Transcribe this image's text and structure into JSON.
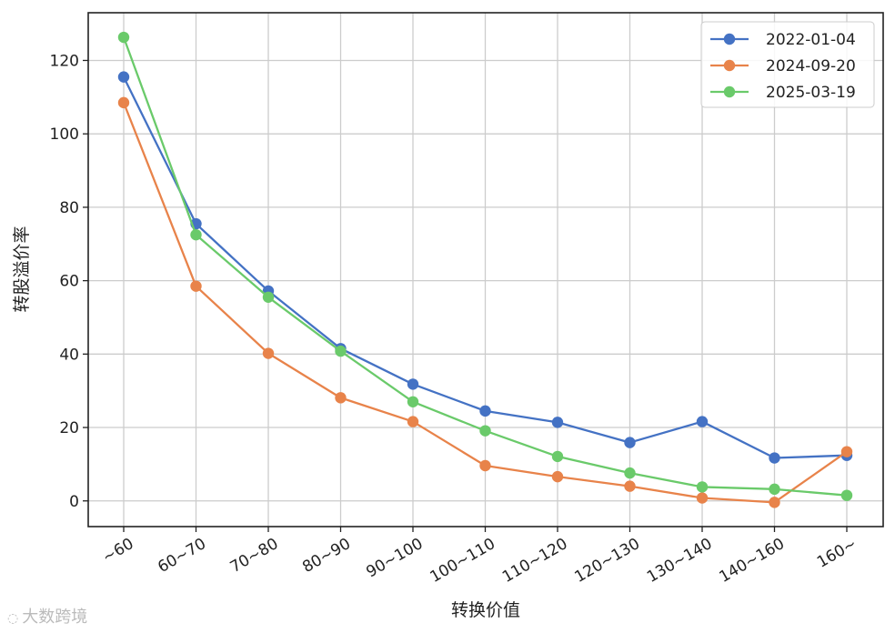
{
  "chart_data": {
    "type": "line",
    "xlabel": "转换价值",
    "ylabel": "转股溢价率",
    "categories": [
      "~60",
      "60~70",
      "70~80",
      "80~90",
      "90~100",
      "100~110",
      "110~120",
      "120~130",
      "130~140",
      "140~160",
      "160~"
    ],
    "ylim": [
      -7,
      133
    ],
    "yticks": [
      0,
      20,
      40,
      60,
      80,
      100,
      120
    ],
    "grid": true,
    "legend_position": "top-right",
    "series": [
      {
        "name": "2022-01-04",
        "color": "#4472c4",
        "values": [
          115.5,
          75.5,
          57.2,
          41.5,
          31.8,
          24.5,
          21.4,
          15.9,
          21.6,
          11.7,
          12.4
        ]
      },
      {
        "name": "2024-09-20",
        "color": "#e8834a",
        "values": [
          108.5,
          58.5,
          40.2,
          28.1,
          21.6,
          9.6,
          6.6,
          4.0,
          0.8,
          -0.4,
          13.4
        ]
      },
      {
        "name": "2025-03-19",
        "color": "#6aca6a",
        "values": [
          126.3,
          72.5,
          55.5,
          40.8,
          27.0,
          19.1,
          12.1,
          7.6,
          3.8,
          3.2,
          1.5
        ]
      }
    ]
  },
  "watermark": {
    "icon": "logo-icon",
    "text": "大数跨境"
  }
}
